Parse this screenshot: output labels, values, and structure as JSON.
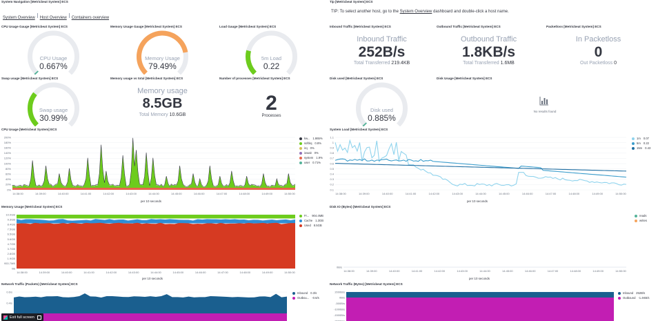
{
  "nav": {
    "title": "System Navigation [Metricbeat System] ECS",
    "links": [
      "System Overview",
      "Host Overview",
      "Containers overview"
    ]
  },
  "tip": {
    "title": "Tip [Metricbeat System] ECS",
    "prefix": "TIP:",
    "pre": "To select another host, go to the",
    "link": "System Overview",
    "post": "dashboard and double-click a host name.",
    "badge": "tip"
  },
  "gauges": {
    "cpu": {
      "title": "CPU Usage Gauge [Metricbeat System] ECS",
      "label": "CPU Usage",
      "value": "0.667%",
      "fraction": 0.00667,
      "color": "#54b399"
    },
    "memory": {
      "title": "Memory Usage Gauge [Metricbeat System] ECS",
      "label": "Memory Usage",
      "value": "79.49%",
      "fraction": 0.7949,
      "color": "#f5a35c"
    },
    "load": {
      "title": "Load Gauge [Metricbeat System] ECS",
      "label": "5m Load",
      "value": "0.22",
      "fraction": 0.22,
      "color": "#6dcc1d"
    },
    "swap": {
      "title": "Swap usage [Metricbeat System] ECS",
      "label": "Swap usage",
      "value": "30.99%",
      "fraction": 0.3099,
      "color": "#6dcc1d"
    },
    "disk": {
      "title": "Disk used [Metricbeat System] ECS",
      "label": "Disk used",
      "value": "0.885%",
      "fraction": 0.00885,
      "color": "#54b399"
    }
  },
  "metrics": {
    "inbound": {
      "title": "Inbound Traffic [Metricbeat System] ECS",
      "label": "Inbound Traffic",
      "value": "252B/s",
      "sub": "Total Transferred",
      "subval": "219.4KB"
    },
    "outbound": {
      "title": "Outbound Traffic [Metricbeat System] ECS",
      "label": "Outbound Traffic",
      "value": "1.8KB/s",
      "sub": "Total Transferred",
      "subval": "1.6MB"
    },
    "packetloss": {
      "title": "Packetloss [Metricbeat System] ECS",
      "label": "In Packetloss",
      "value": "0",
      "sub": "Out Packetloss",
      "subval": "0"
    },
    "memtotal": {
      "title": "Memory usage vs total [Metricbeat System] ECS",
      "label": "Memory usage",
      "value": "8.5GB",
      "sub": "Total Memory",
      "subval": "10.6GB"
    },
    "processes": {
      "title": "Number of processes [Metricbeat System] ECS",
      "value": "2",
      "sub": "Processes"
    }
  },
  "diskusage": {
    "title": "Disk Usage [Metricbeat System] ECS",
    "message": "No results found",
    "icon": "chart-bar-icon"
  },
  "time_ticks": [
    "14:38:00",
    "14:39:00",
    "14:40:00",
    "14:41:00",
    "14:42:00",
    "14:43:00",
    "14:44:00",
    "14:45:00",
    "14:46:00",
    "14:47:00",
    "14:48:00",
    "14:49:00",
    "14:50:00"
  ],
  "charts": {
    "cpu": {
      "title": "CPU Usage [Metricbeat System] ECS",
      "xlabel": "per 10 seconds",
      "yticks": [
        "200%",
        "180%",
        "160%",
        "140%",
        "120%",
        "100%",
        "80%",
        "60%",
        "40%",
        "20%",
        "0%"
      ],
      "legend": [
        {
          "name": "kw...",
          "value": "1.865%",
          "color": "#343741"
        },
        {
          "name": "softirq",
          "value": "0.8%",
          "color": "#6dcc1d"
        },
        {
          "name": "irq",
          "value": "0%",
          "color": "#d6bf57"
        },
        {
          "name": "iowait",
          "value": "0%",
          "color": "#9170b8"
        },
        {
          "name": "system",
          "value": "1.9%",
          "color": "#e7664c"
        },
        {
          "name": "user",
          "value": "0.71%",
          "color": "#54b399"
        }
      ]
    },
    "load": {
      "title": "System Load [Metricbeat System] ECS",
      "xlabel": "per 10 seconds",
      "yticks": [
        "1.1",
        "1",
        "0.9",
        "0.8",
        "0.7",
        "0.6",
        "0.5",
        "0.4",
        "0.3",
        "0.2",
        "0.1"
      ],
      "legend": [
        {
          "name": "1m",
          "value": "0.07",
          "color": "#8fd3ed"
        },
        {
          "name": "5m",
          "value": "0.22",
          "color": "#3b9dcc"
        },
        {
          "name": "15m",
          "value": "0.43",
          "color": "#1f6ea2"
        }
      ]
    },
    "mem": {
      "title": "Memory Usage [Metricbeat System] ECS",
      "xlabel": "per 10 seconds",
      "yticks": [
        "10.0GB",
        "9.3GB",
        "8.4GB",
        "7.5GB",
        "6.5GB",
        "5.6GB",
        "4.7GB",
        "3.7GB",
        "2.8GB",
        "1.9GB",
        "953.7MB",
        "0B"
      ],
      "legend": [
        {
          "name": "Fr...",
          "value": "904.4MB",
          "color": "#6dcc1d"
        },
        {
          "name": "Cache",
          "value": "1.3GB",
          "color": "#2f8fd6"
        },
        {
          "name": "Used",
          "value": "8.5GB",
          "color": "#d63a22"
        }
      ]
    },
    "diskio": {
      "title": "Disk IO (Bytes) [Metricbeat System] ECS",
      "xlabel": "per 10 seconds",
      "yticks": [
        "0B/s"
      ],
      "legend": [
        {
          "name": "reads",
          "value": "",
          "color": "#54b399"
        },
        {
          "name": "writes",
          "value": "",
          "color": "#f5a35c"
        }
      ]
    },
    "netpk": {
      "title": "Network Traffic (Packets) [Metricbeat System] ECS",
      "yticks": [
        "0.6/s",
        "0.4/s",
        "0.2/s"
      ],
      "legend": [
        {
          "name": "Inbound",
          "value": "0.3/s",
          "color": "#1a5f8f"
        },
        {
          "name": "Outbou...",
          "value": "-0.6/s",
          "color": "#c21eb3"
        }
      ]
    },
    "netby": {
      "title": "Network Traffic (Bytes) [Metricbeat System] ECS",
      "yticks": [
        "2000B/s",
        "0B/s",
        "-500B/s",
        "-1000B/s",
        "-1500B/s",
        "-2000B/s"
      ],
      "legend": [
        {
          "name": "Inbound",
          "value": "252B/s",
          "color": "#1a5f8f"
        },
        {
          "name": "Outbound",
          "value": "-1.4KB/s",
          "color": "#c21eb3"
        }
      ]
    }
  },
  "fullscreen": {
    "label": "Exit full screen"
  }
}
